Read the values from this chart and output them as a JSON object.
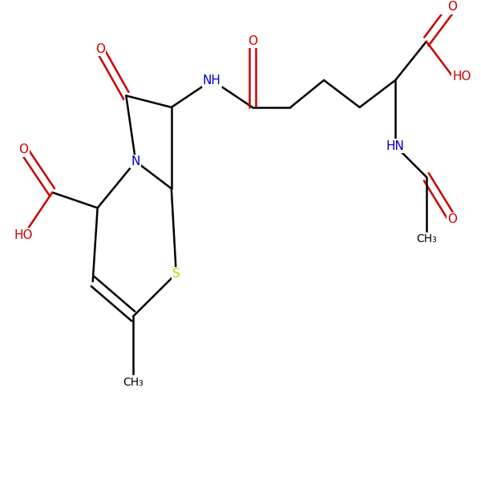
{
  "bg_color": "#ffffff",
  "C": "#000000",
  "N": "#0000cd",
  "O": "#cc0000",
  "S": "#cccc00",
  "lw": 1.8,
  "fs": 11,
  "xlim": [
    0,
    10
  ],
  "ylim": [
    2,
    8
  ],
  "figsize": [
    6.0,
    6.0
  ],
  "dpi": 100
}
